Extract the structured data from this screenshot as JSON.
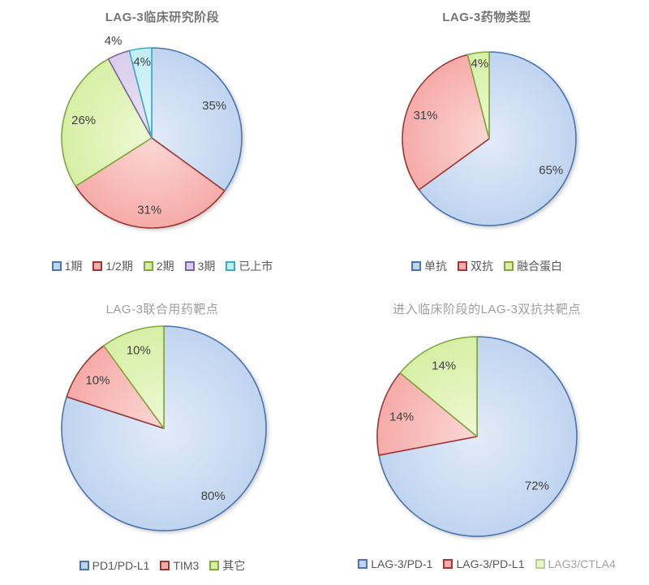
{
  "colors": {
    "blue": {
      "fill": "#c0d4f0",
      "fill_light": "#e2ebf8",
      "border": "#4a76ad"
    },
    "red": {
      "fill": "#f6aba8",
      "fill_light": "#fbd8d6",
      "border": "#9c3836"
    },
    "green": {
      "fill": "#d6efa5",
      "fill_light": "#eef9d4",
      "border": "#84a73e"
    },
    "purple": {
      "fill": "#d9cdec",
      "fill_light": "#ece5f5",
      "border": "#7c64a5"
    },
    "cyan": {
      "fill": "#c3edf5",
      "fill_light": "#e0f7fb",
      "border": "#38aec6"
    }
  },
  "chart_data": [
    {
      "type": "pie",
      "title": "LAG-3临床研究阶段",
      "labels": [
        "1期",
        "1/2期",
        "2期",
        "3期",
        "已上市"
      ],
      "values": [
        35,
        31,
        26,
        4,
        4
      ],
      "percent_labels": [
        "35%",
        "31%",
        "26%",
        "4%",
        "4%"
      ],
      "colors": [
        "blue",
        "red",
        "green",
        "purple",
        "cyan"
      ],
      "legend_position": "bottom",
      "start_angle": 0,
      "direction": "clockwise"
    },
    {
      "type": "pie",
      "title": "LAG-3药物类型",
      "labels": [
        "单抗",
        "双抗",
        "融合蛋白"
      ],
      "values": [
        65,
        31,
        4
      ],
      "percent_labels": [
        "65%",
        "31%",
        "4%"
      ],
      "colors": [
        "blue",
        "red",
        "green"
      ],
      "legend_position": "bottom",
      "start_angle": 0,
      "direction": "clockwise"
    },
    {
      "type": "pie",
      "title": "LAG-3联合用药靶点",
      "labels": [
        "PD1/PD-L1",
        "TIM3",
        "其它"
      ],
      "values": [
        80,
        10,
        10
      ],
      "percent_labels": [
        "80%",
        "10%",
        "10%"
      ],
      "colors": [
        "blue",
        "red",
        "green"
      ],
      "legend_position": "bottom",
      "start_angle": 0,
      "direction": "clockwise"
    },
    {
      "type": "pie",
      "title": "进入临床阶段的LAG-3双抗共靶点",
      "labels": [
        "LAG-3/PD-1",
        "LAG-3/PD-L1",
        "LAG3/CTLA4"
      ],
      "values": [
        72,
        14,
        14
      ],
      "percent_labels": [
        "72%",
        "14%",
        "14%"
      ],
      "colors": [
        "blue",
        "red",
        "green"
      ],
      "legend_position": "bottom",
      "start_angle": 0,
      "direction": "clockwise"
    }
  ]
}
